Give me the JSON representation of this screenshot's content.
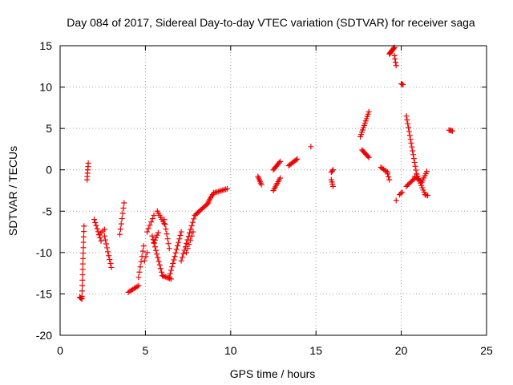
{
  "chart_data": {
    "type": "scatter",
    "title": "Day 084 of 2017, Sidereal Day-to-day VTEC variation (SDTVAR) for receiver saga",
    "xlabel": "GPS time / hours",
    "ylabel": "SDTVAR / TECUs",
    "xlim": [
      0,
      25
    ],
    "ylim": [
      -20,
      15
    ],
    "xticks": [
      "0",
      "5",
      "10",
      "15",
      "20",
      "25"
    ],
    "yticks": [
      "15",
      "10",
      "5",
      "0",
      "-5",
      "-10",
      "-15",
      "-20"
    ],
    "grid": true,
    "marker": "plus",
    "color": "#ee0000",
    "segments": [
      {
        "x0": 1.15,
        "y0": -15.4,
        "x1": 1.28,
        "y1": -15.6,
        "n": 4
      },
      {
        "x0": 1.28,
        "y0": -15.3,
        "x1": 1.4,
        "y1": -6.8,
        "n": 14
      },
      {
        "x0": 1.58,
        "y0": -1.2,
        "x1": 1.65,
        "y1": 0.8,
        "n": 6
      },
      {
        "x0": 2.0,
        "y0": -6.0,
        "x1": 2.4,
        "y1": -8.6,
        "n": 8
      },
      {
        "x0": 2.3,
        "y0": -7.8,
        "x1": 2.6,
        "y1": -7.2,
        "n": 4
      },
      {
        "x0": 2.6,
        "y0": -8.0,
        "x1": 3.0,
        "y1": -11.8,
        "n": 9
      },
      {
        "x0": 3.5,
        "y0": -7.8,
        "x1": 3.75,
        "y1": -4.0,
        "n": 7
      },
      {
        "x0": 4.0,
        "y0": -14.8,
        "x1": 4.6,
        "y1": -14.0,
        "n": 8
      },
      {
        "x0": 4.6,
        "y0": -13.0,
        "x1": 4.9,
        "y1": -9.2,
        "n": 7
      },
      {
        "x0": 4.95,
        "y0": -11.0,
        "x1": 5.1,
        "y1": -10.0,
        "n": 3
      },
      {
        "x0": 5.1,
        "y0": -7.5,
        "x1": 5.5,
        "y1": -5.5,
        "n": 6
      },
      {
        "x0": 5.5,
        "y0": -8.8,
        "x1": 5.75,
        "y1": -7.6,
        "n": 5
      },
      {
        "x0": 5.7,
        "y0": -5.0,
        "x1": 6.1,
        "y1": -6.5,
        "n": 7
      },
      {
        "x0": 5.4,
        "y0": -8.0,
        "x1": 6.0,
        "y1": -12.8,
        "n": 12
      },
      {
        "x0": 6.0,
        "y0": -12.8,
        "x1": 6.5,
        "y1": -13.2,
        "n": 7
      },
      {
        "x0": 6.1,
        "y0": -6.0,
        "x1": 6.4,
        "y1": -9.5,
        "n": 7
      },
      {
        "x0": 6.4,
        "y0": -13.0,
        "x1": 7.1,
        "y1": -7.5,
        "n": 14
      },
      {
        "x0": 7.1,
        "y0": -11.0,
        "x1": 7.9,
        "y1": -5.5,
        "n": 14
      },
      {
        "x0": 7.4,
        "y0": -10.0,
        "x1": 7.8,
        "y1": -7.5,
        "n": 6
      },
      {
        "x0": 7.9,
        "y0": -5.5,
        "x1": 8.7,
        "y1": -4.0,
        "n": 12
      },
      {
        "x0": 8.7,
        "y0": -3.8,
        "x1": 9.0,
        "y1": -2.8,
        "n": 6
      },
      {
        "x0": 9.0,
        "y0": -2.8,
        "x1": 9.8,
        "y1": -2.3,
        "n": 10
      },
      {
        "x0": 11.6,
        "y0": -0.8,
        "x1": 11.8,
        "y1": -1.8,
        "n": 6
      },
      {
        "x0": 12.5,
        "y0": -2.5,
        "x1": 12.9,
        "y1": -1.0,
        "n": 8
      },
      {
        "x0": 12.5,
        "y0": 0.0,
        "x1": 12.9,
        "y1": 1.0,
        "n": 8
      },
      {
        "x0": 13.4,
        "y0": 0.5,
        "x1": 13.9,
        "y1": 1.3,
        "n": 8
      },
      {
        "x0": 14.7,
        "y0": 2.8,
        "x1": 14.7,
        "y1": 2.8,
        "n": 1
      },
      {
        "x0": 15.9,
        "y0": -0.3,
        "x1": 16.0,
        "y1": 0.0,
        "n": 3
      },
      {
        "x0": 15.9,
        "y0": -1.2,
        "x1": 16.0,
        "y1": -2.0,
        "n": 4
      },
      {
        "x0": 17.6,
        "y0": 4.0,
        "x1": 18.1,
        "y1": 7.0,
        "n": 12
      },
      {
        "x0": 17.7,
        "y0": 2.4,
        "x1": 18.1,
        "y1": 1.5,
        "n": 8
      },
      {
        "x0": 18.8,
        "y0": 0.3,
        "x1": 19.2,
        "y1": -0.3,
        "n": 6
      },
      {
        "x0": 19.2,
        "y0": -0.5,
        "x1": 19.3,
        "y1": -1.2,
        "n": 3
      },
      {
        "x0": 19.3,
        "y0": 14.0,
        "x1": 19.6,
        "y1": 14.8,
        "n": 10
      },
      {
        "x0": 19.6,
        "y0": 13.8,
        "x1": 19.7,
        "y1": 12.6,
        "n": 4
      },
      {
        "x0": 19.7,
        "y0": -3.7,
        "x1": 19.7,
        "y1": -3.7,
        "n": 1
      },
      {
        "x0": 20.0,
        "y0": 10.4,
        "x1": 20.1,
        "y1": 10.3,
        "n": 3
      },
      {
        "x0": 19.9,
        "y0": -3.0,
        "x1": 20.05,
        "y1": -2.7,
        "n": 3
      },
      {
        "x0": 20.3,
        "y0": 6.5,
        "x1": 20.9,
        "y1": -0.5,
        "n": 16
      },
      {
        "x0": 20.9,
        "y0": -0.5,
        "x1": 21.4,
        "y1": -3.0,
        "n": 10
      },
      {
        "x0": 21.4,
        "y0": -3.0,
        "x1": 21.55,
        "y1": -3.1,
        "n": 3
      },
      {
        "x0": 20.3,
        "y0": -2.0,
        "x1": 20.8,
        "y1": -1.0,
        "n": 8
      },
      {
        "x0": 20.8,
        "y0": -0.8,
        "x1": 21.2,
        "y1": -1.5,
        "n": 6
      },
      {
        "x0": 21.2,
        "y0": -1.5,
        "x1": 21.5,
        "y1": -0.2,
        "n": 6
      },
      {
        "x0": 22.8,
        "y0": 4.8,
        "x1": 23.0,
        "y1": 4.7,
        "n": 4
      }
    ]
  }
}
